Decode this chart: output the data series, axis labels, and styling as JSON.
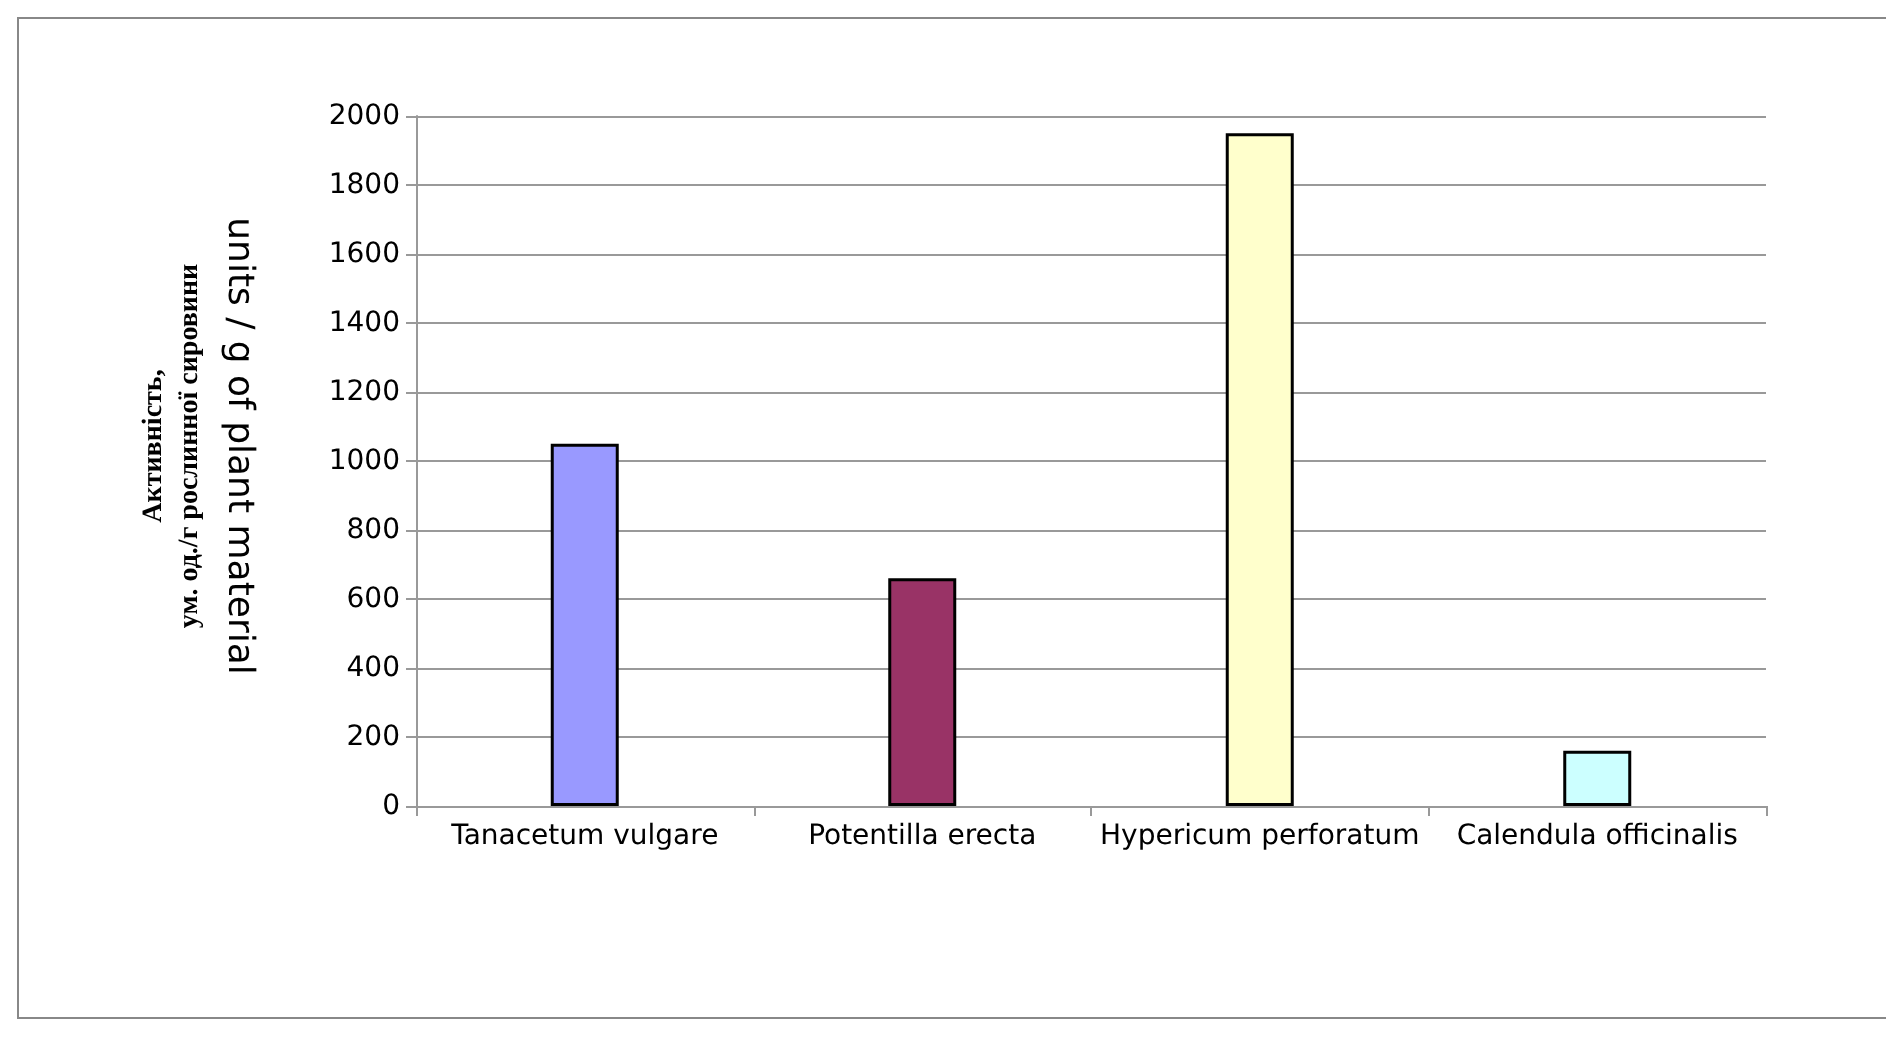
{
  "chart_data": {
    "type": "bar",
    "ylabel": "Активність,\nум. од./г рослинної сировини",
    "annotations": [
      "units / g of plant material"
    ],
    "categories": [
      "Tanacetum vulgare",
      "Potentilla erecta",
      "Hypericum perforatum",
      "Calendula officinalis"
    ],
    "values": [
      1050,
      660,
      1950,
      160
    ],
    "colors": [
      "#9999ff",
      "#993366",
      "#ffffcc",
      "#ccffff"
    ],
    "ylim": [
      0,
      2000
    ],
    "yticks": [
      0,
      200,
      400,
      600,
      800,
      1000,
      1200,
      1400,
      1600,
      1800,
      2000
    ],
    "grid": "y"
  }
}
